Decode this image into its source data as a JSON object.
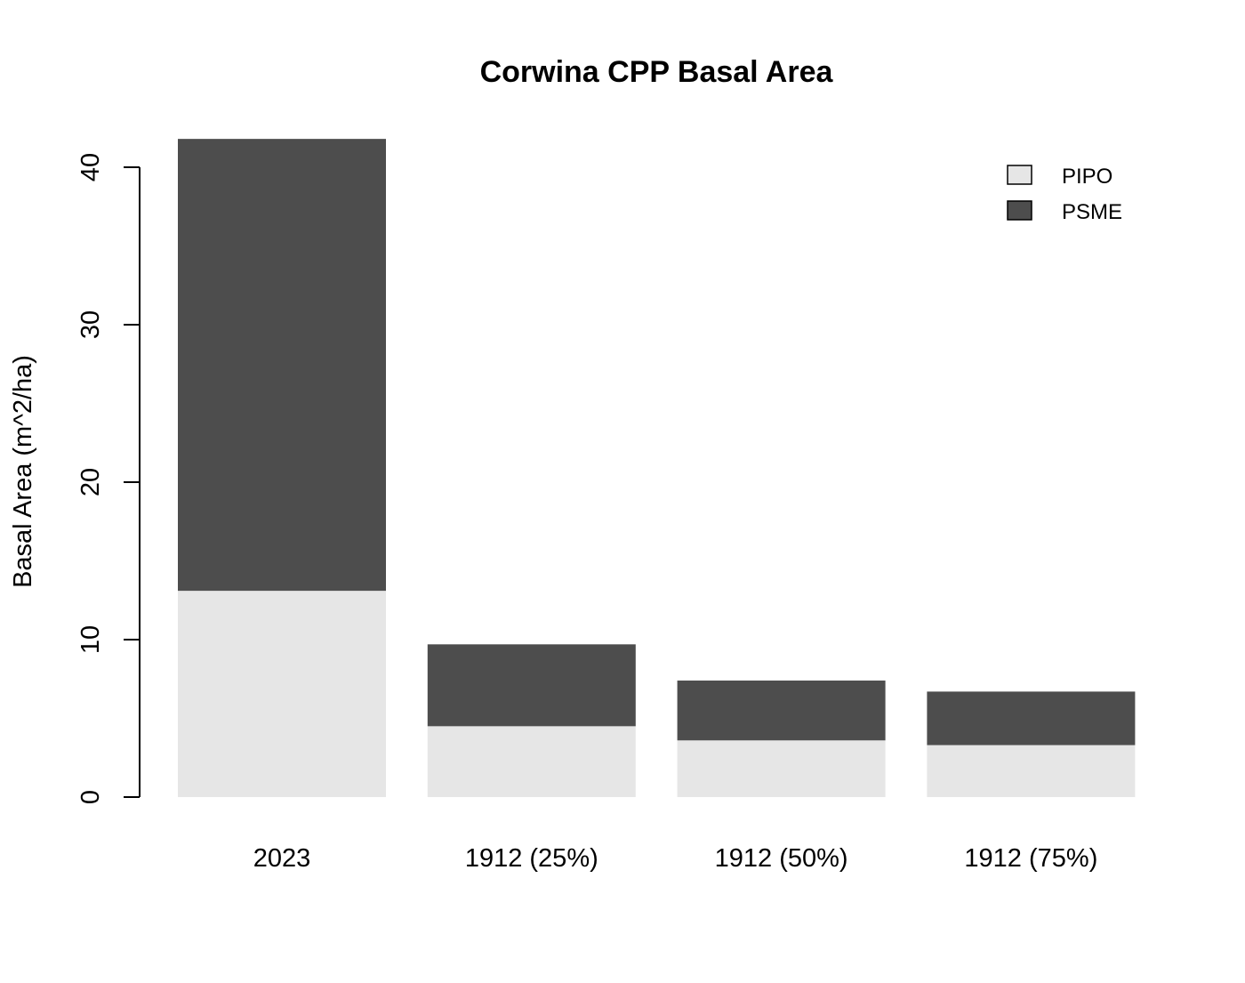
{
  "chart_data": {
    "type": "bar",
    "stacked": true,
    "title": "Corwina CPP Basal Area",
    "xlabel": "",
    "ylabel": "Basal Area (m^2/ha)",
    "categories": [
      "2023",
      "1912 (25%)",
      "1912 (50%)",
      "1912 (75%)"
    ],
    "series": [
      {
        "name": "PIPO",
        "values": [
          13.1,
          4.5,
          3.6,
          3.3
        ],
        "color": "#e6e6e6"
      },
      {
        "name": "PSME",
        "values": [
          28.7,
          5.2,
          3.8,
          3.4
        ],
        "color": "#4d4d4d"
      }
    ],
    "yticks": [
      "0",
      "10",
      "20",
      "30",
      "40"
    ],
    "ylim": [
      0,
      40
    ],
    "grid": false,
    "legend": {
      "position": "top-right",
      "entries": [
        "PIPO",
        "PSME"
      ]
    }
  }
}
